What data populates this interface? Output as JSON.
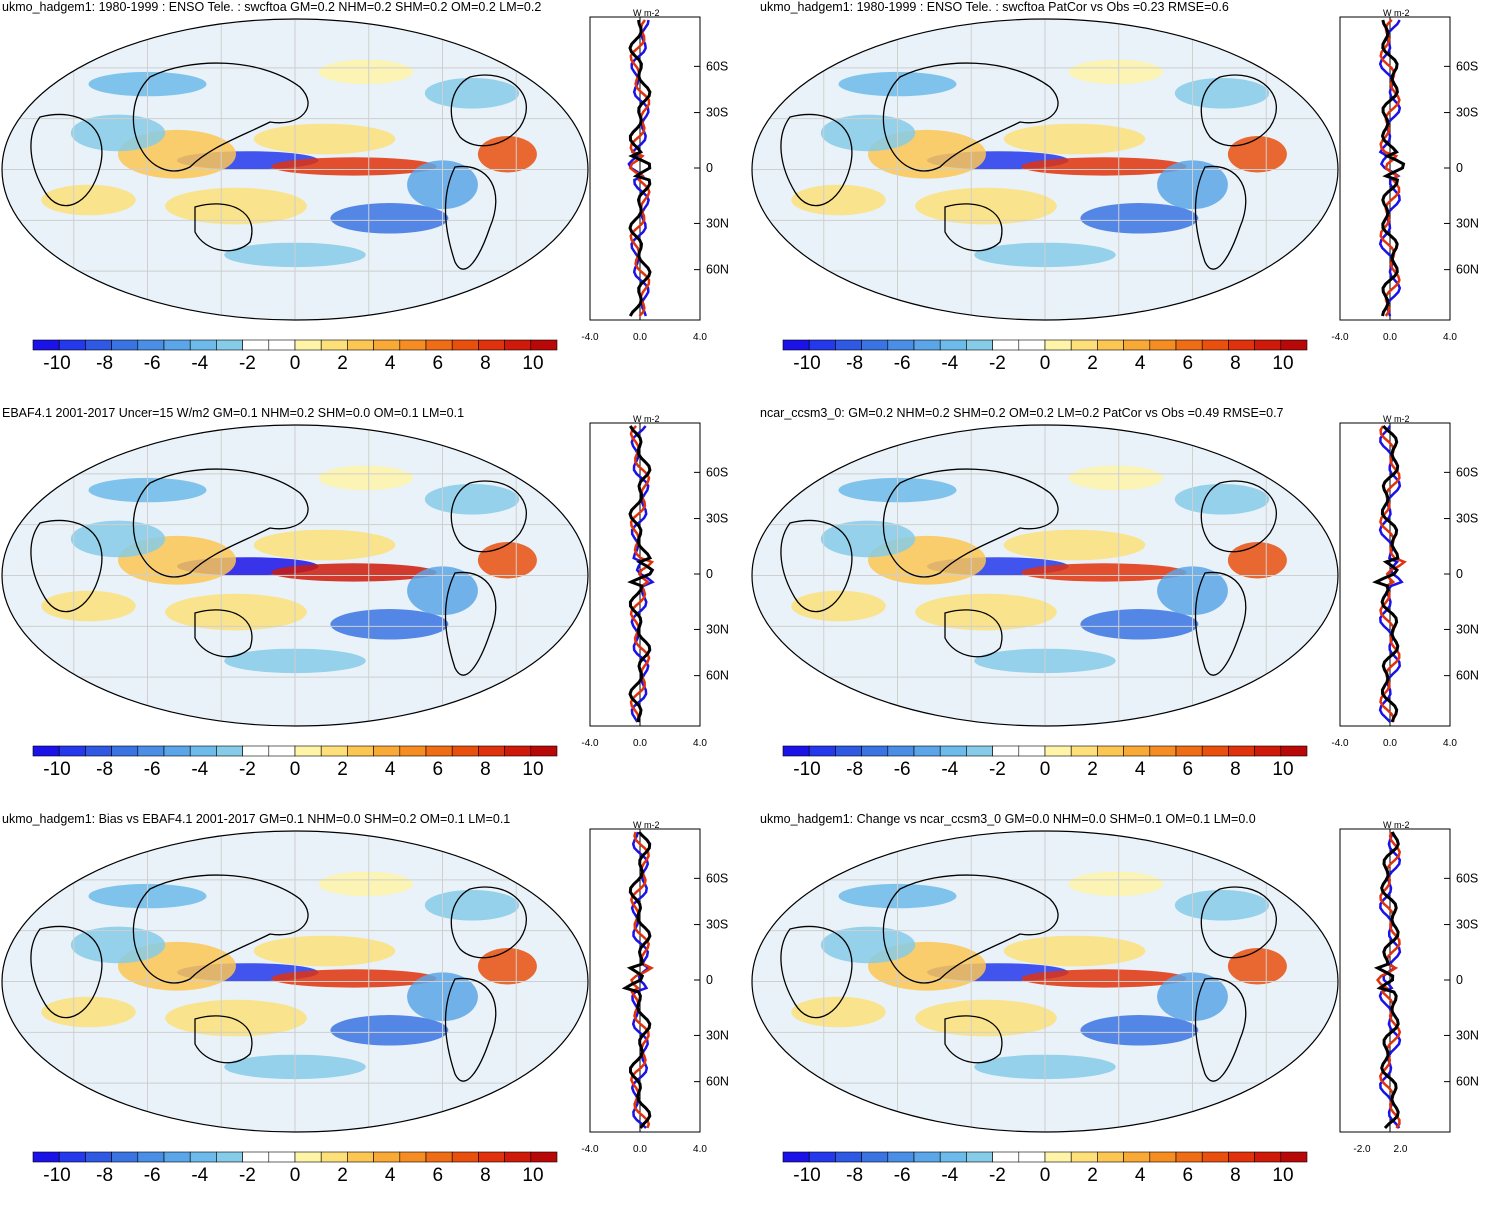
{
  "panels": [
    {
      "title": "ukmo_hadgem1: 1980-1999 : ENSO Tele. : swcftoa GM=0.2 NHM=0.2 SHM=0.2 OM=0.2 LM=0.2",
      "xticks": [
        "-4.0",
        "0.0",
        "4.0"
      ]
    },
    {
      "title": "ukmo_hadgem1: 1980-1999 : ENSO Tele. : swcftoa PatCor vs Obs =0.23 RMSE=0.6",
      "xticks": [
        "-4.0",
        "0.0",
        "4.0"
      ]
    },
    {
      "title": "EBAF4.1 2001-2017 Uncer=15 W/m2 GM=0.1 NHM=0.2 SHM=0.0 OM=0.1 LM=0.1",
      "xticks": [
        "-4.0",
        "0.0",
        "4.0"
      ]
    },
    {
      "title": "ncar_ccsm3_0: GM=0.2 NHM=0.2 SHM=0.2 OM=0.2 LM=0.2 PatCor vs Obs =0.49 RMSE=0.7",
      "xticks": [
        "-4.0",
        "0.0",
        "4.0"
      ]
    },
    {
      "title": "ukmo_hadgem1: Bias vs EBAF4.1 2001-2017 GM=0.1 NHM=0.0 SHM=0.2 OM=0.1 LM=0.1",
      "xticks": [
        "-4.0",
        "0.0",
        "4.0"
      ]
    },
    {
      "title": "ukmo_hadgem1: Change vs ncar_ccsm3_0 GM=0.0 NHM=0.0 SHM=0.1 OM=0.1 LM=0.0",
      "xticks": [
        "-2.0",
        "2.0"
      ]
    }
  ],
  "lat_labels": [
    "60N",
    "30N",
    "0",
    "30S",
    "60S"
  ],
  "units": {
    "base": "W m",
    "exp": "-2"
  },
  "colorbar": {
    "labels": [
      "-10",
      "-8",
      "-6",
      "-4",
      "-2",
      "0",
      "2",
      "4",
      "6",
      "8",
      "10"
    ],
    "colors": [
      "#1a12e6",
      "#2438ec",
      "#2f58e3",
      "#3a74e2",
      "#4a8ee6",
      "#5aa6e8",
      "#6cbbea",
      "#86cbe8",
      "#ffffff",
      "#ffffff",
      "#fff4a8",
      "#fde07a",
      "#fcc653",
      "#f9a935",
      "#f58d22",
      "#ef6e15",
      "#e9500e",
      "#e0320c",
      "#cf1a0a",
      "#b80808"
    ]
  }
}
